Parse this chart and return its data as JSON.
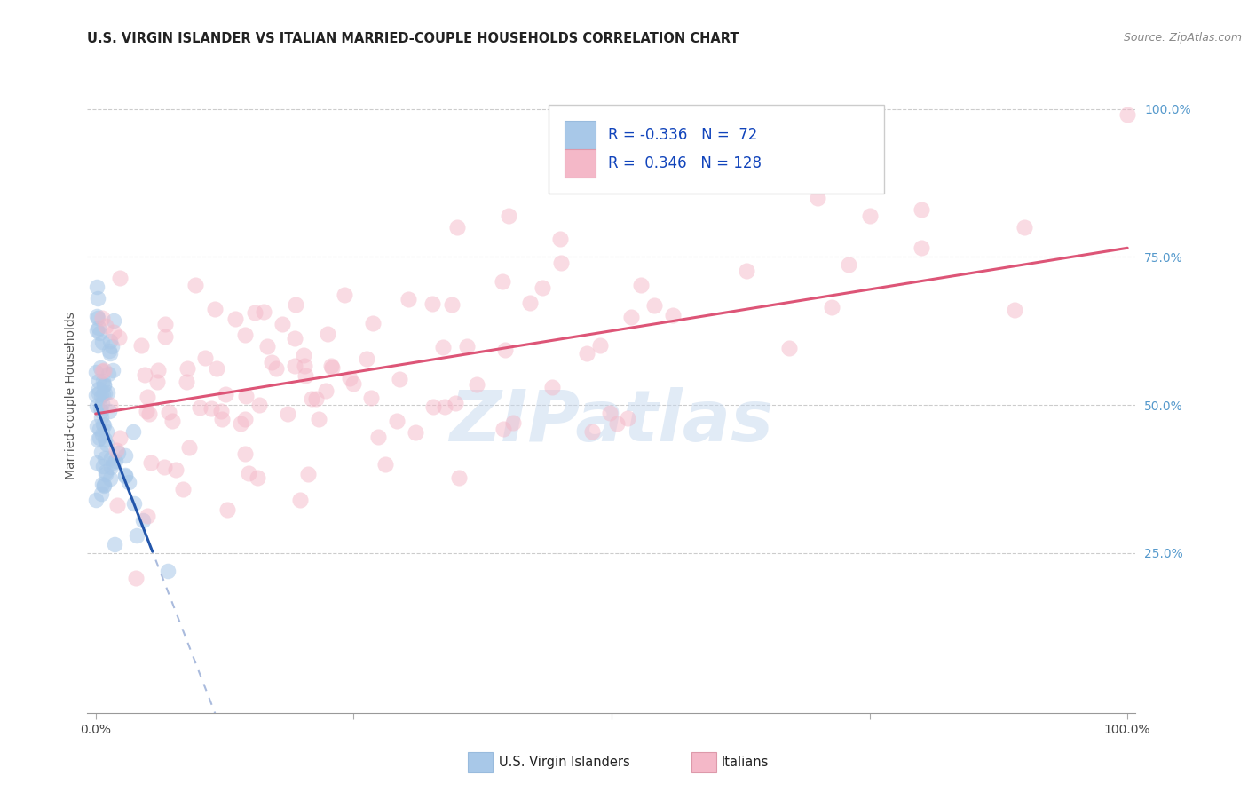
{
  "title": "U.S. VIRGIN ISLANDER VS ITALIAN MARRIED-COUPLE HOUSEHOLDS CORRELATION CHART",
  "source": "Source: ZipAtlas.com",
  "ylabel": "Married-couple Households",
  "watermark": "ZIPatlas",
  "legend_r_blue": "-0.336",
  "legend_n_blue": "72",
  "legend_r_pink": "0.346",
  "legend_n_pink": "128",
  "label_blue": "U.S. Virgin Islanders",
  "label_pink": "Italians",
  "color_blue": "#a8c8e8",
  "color_pink": "#f4b8c8",
  "trend_blue": "#2255aa",
  "trend_pink": "#dd5577",
  "trend_dash_color": "#aabbdd",
  "bg_color": "#ffffff",
  "grid_color": "#cccccc",
  "right_tick_color": "#5599cc"
}
